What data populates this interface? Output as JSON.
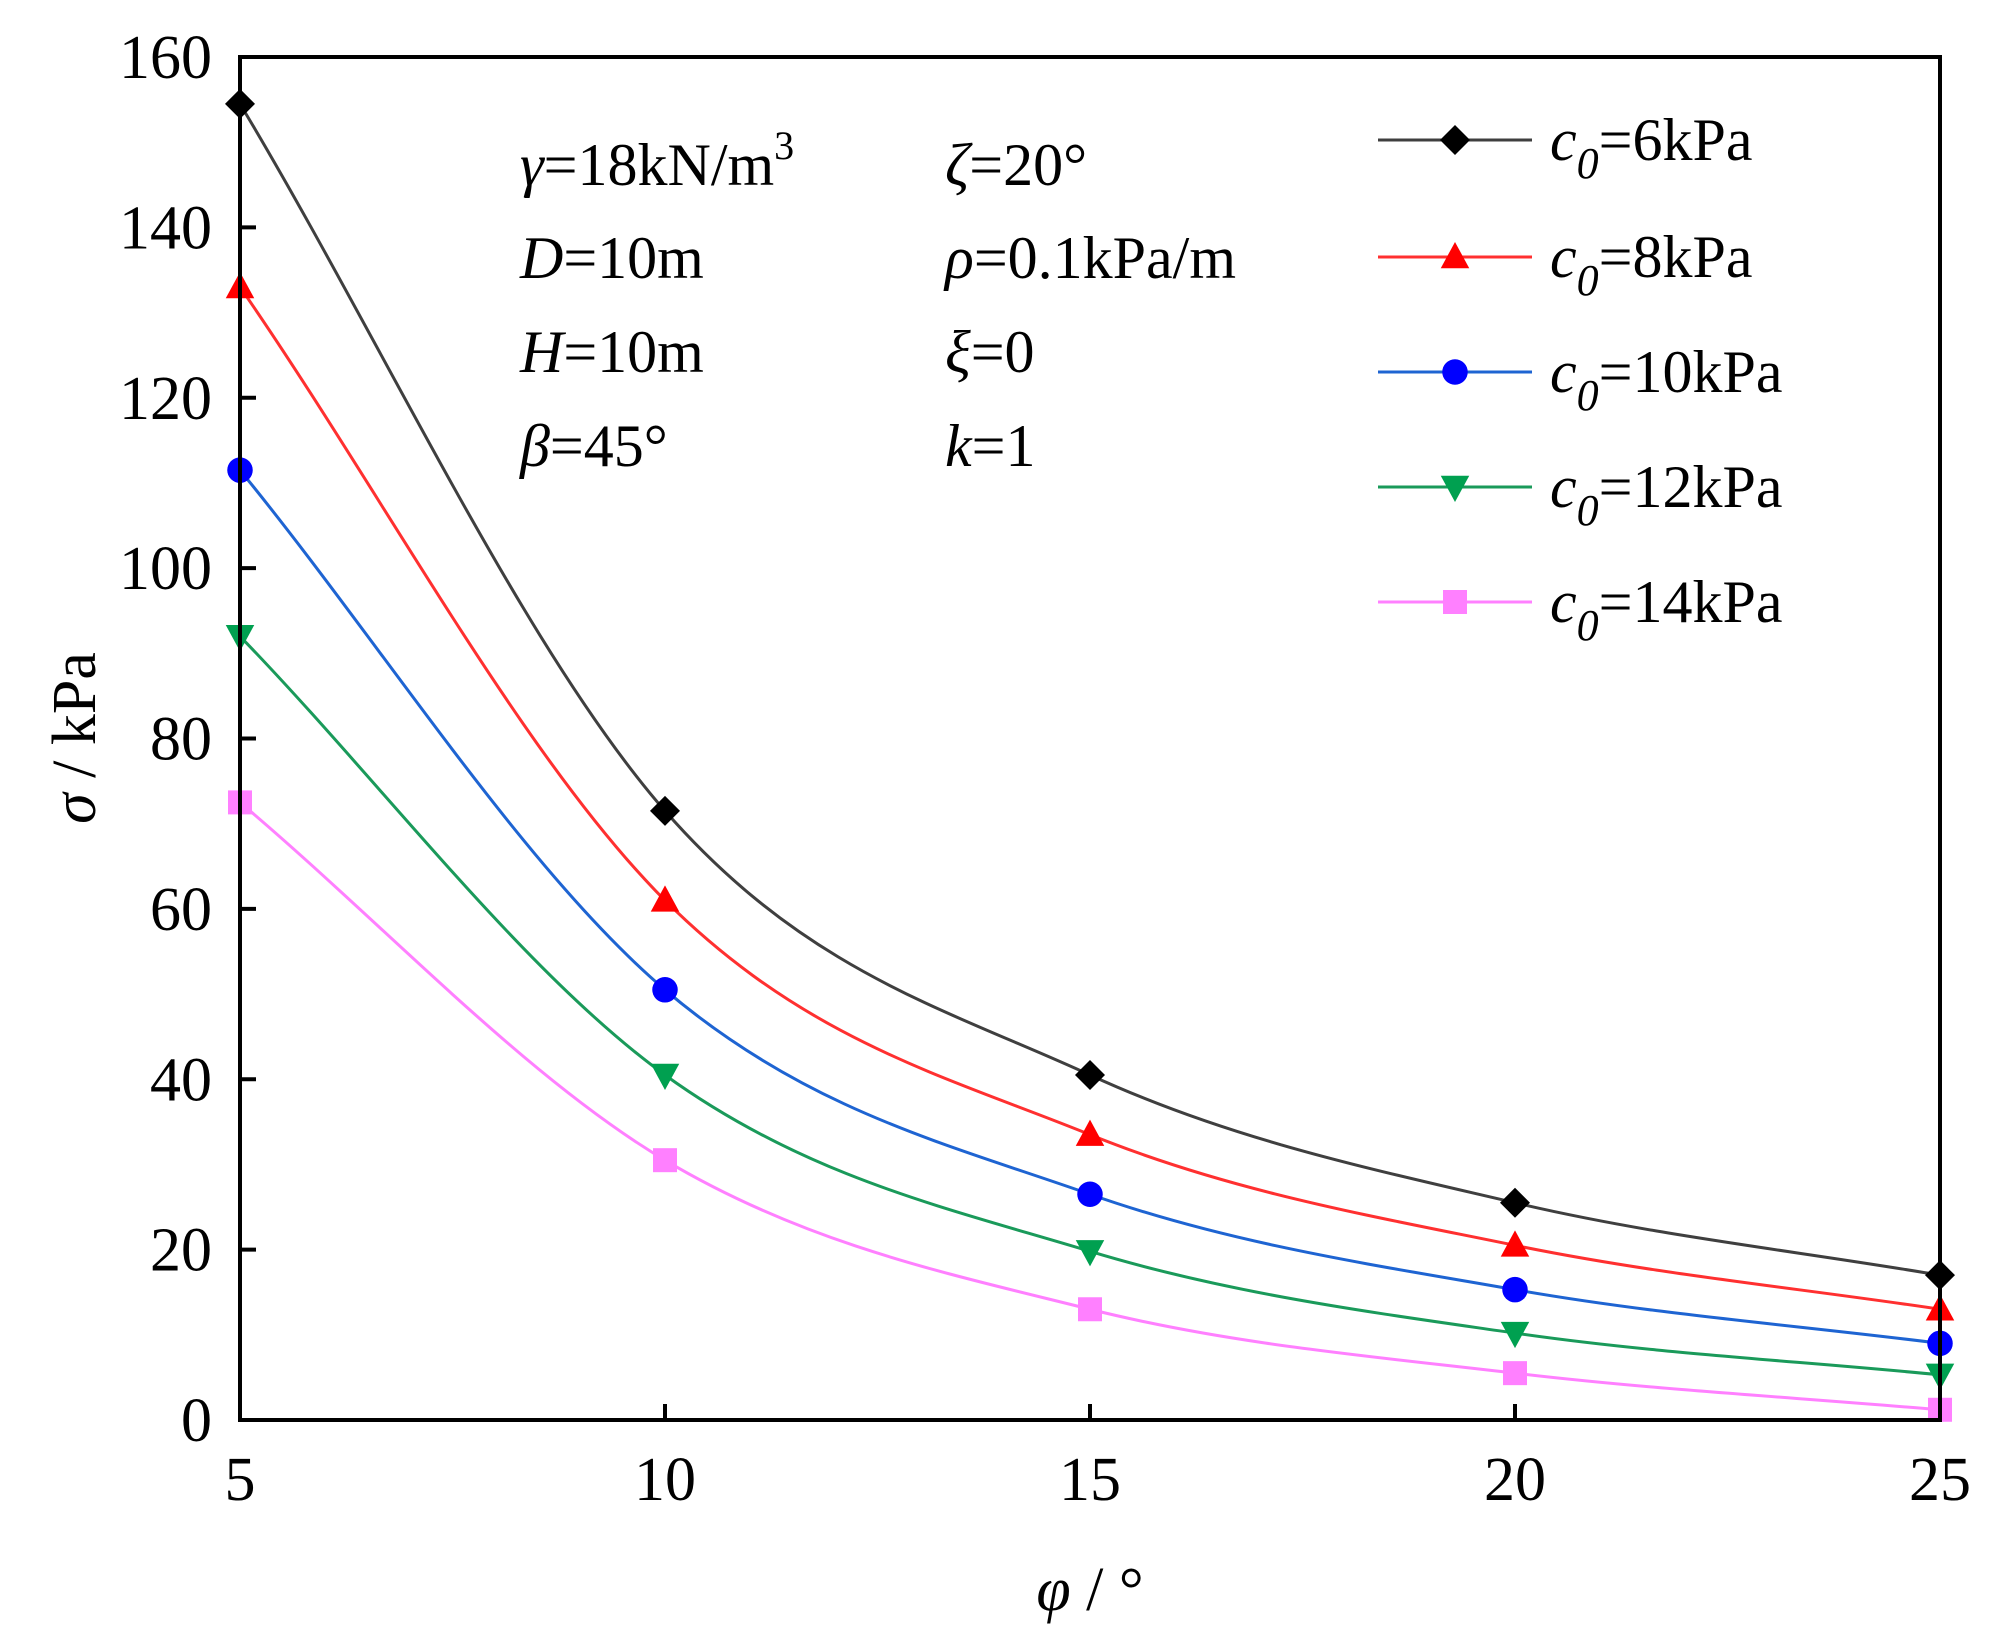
{
  "chart_data": {
    "type": "line",
    "xlabel": "φ / °",
    "xlabel_var": "φ",
    "xlabel_unit": " / °",
    "ylabel": "σ / kPa",
    "ylabel_var": "σ",
    "ylabel_unit": " / kPa",
    "xlim": [
      5,
      25
    ],
    "ylim": [
      0,
      160
    ],
    "xticks": [
      5,
      10,
      15,
      20,
      25
    ],
    "yticks": [
      0,
      20,
      40,
      60,
      80,
      100,
      120,
      140,
      160
    ],
    "x": [
      5,
      10,
      15,
      20,
      25
    ],
    "legend_position": "top-right",
    "series": [
      {
        "name": "c0=6kPa",
        "label_var": "c",
        "label_sub": "0",
        "label_rest": "=6kPa",
        "values": [
          154.5,
          71.5,
          40.5,
          25.5,
          17.0
        ],
        "color": "#3f3f3f",
        "marker_color": "#000000",
        "marker": "diamond"
      },
      {
        "name": "c0=8kPa",
        "label_var": "c",
        "label_sub": "0",
        "label_rest": "=8kPa",
        "values": [
          133.0,
          61.0,
          33.5,
          20.5,
          13.0
        ],
        "color": "#ff3030",
        "marker_color": "#ff0000",
        "marker": "triangle-up"
      },
      {
        "name": "c0=10kPa",
        "label_var": "c",
        "label_sub": "0",
        "label_rest": "=10kPa",
        "values": [
          111.5,
          50.5,
          26.5,
          15.3,
          9.0
        ],
        "color": "#1e64d2",
        "marker_color": "#0000ff",
        "marker": "circle"
      },
      {
        "name": "c0=12kPa",
        "label_var": "c",
        "label_sub": "0",
        "label_rest": "=12kPa",
        "values": [
          92.0,
          40.5,
          19.8,
          10.2,
          5.3
        ],
        "color": "#1a9a5a",
        "marker_color": "#00a050",
        "marker": "triangle-down"
      },
      {
        "name": "c0=14kPa",
        "label_var": "c",
        "label_sub": "0",
        "label_rest": "=14kPa",
        "values": [
          72.5,
          30.5,
          13.0,
          5.5,
          1.2
        ],
        "color": "#ff80ff",
        "marker_color": "#ff80ff",
        "marker": "square"
      }
    ],
    "annotations": [
      {
        "var": "γ",
        "rest": "=18kN/m",
        "sup": "3"
      },
      {
        "var": "ζ",
        "rest": "=20°",
        "sup": ""
      },
      {
        "var": "D",
        "rest": "=10m",
        "sup": ""
      },
      {
        "var": "ρ",
        "rest": "=0.1kPa/m",
        "sup": ""
      },
      {
        "var": "H",
        "rest": "=10m",
        "sup": ""
      },
      {
        "var": "ξ",
        "rest": "=0",
        "sup": ""
      },
      {
        "var": "β",
        "rest": "=45°",
        "sup": ""
      },
      {
        "var": "k",
        "rest": "=1",
        "sup": ""
      }
    ]
  }
}
